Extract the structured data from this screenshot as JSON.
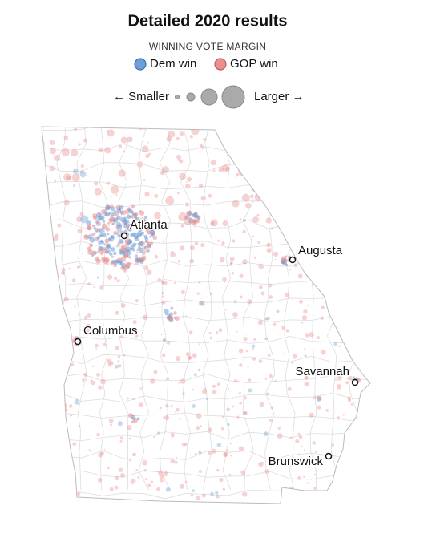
{
  "title": "Detailed 2020 results",
  "legend": {
    "title": "WINNING VOTE MARGIN",
    "items": [
      {
        "label": "Dem win",
        "color": "#6f9fd8"
      },
      {
        "label": "GOP win",
        "color": "#e8908f"
      }
    ],
    "size": {
      "smaller": "← Smaller",
      "larger": "Larger →"
    }
  },
  "cities": [
    {
      "name": "Atlanta"
    },
    {
      "name": "Augusta"
    },
    {
      "name": "Columbus"
    },
    {
      "name": "Savannah"
    },
    {
      "name": "Brunswick"
    }
  ]
}
